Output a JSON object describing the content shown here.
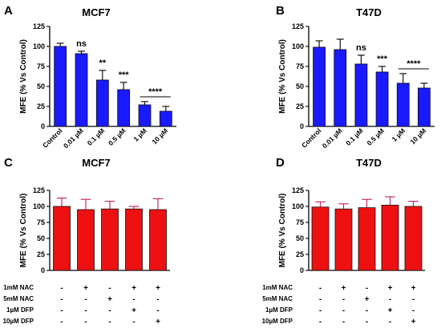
{
  "chart_data": [
    {
      "panel": "A",
      "type": "bar",
      "title": "MCF7",
      "ylabel": "MFE (% Vs Control)",
      "xlabel": "",
      "ylim": [
        0,
        125
      ],
      "yticks": [
        0,
        25,
        50,
        75,
        100,
        125
      ],
      "categories": [
        "Control",
        "0.01 µM",
        "0.1 µM",
        "0.5 µM",
        "1 µM",
        "10 µM"
      ],
      "values": [
        100,
        91,
        58,
        46,
        27,
        19
      ],
      "errors": [
        4,
        3,
        12,
        9,
        4,
        6
      ],
      "significance": [
        "",
        "ns",
        "**",
        "***",
        "****",
        "****"
      ],
      "bar_color": "#1a1aff",
      "grid": false
    },
    {
      "panel": "B",
      "type": "bar",
      "title": "T47D",
      "ylabel": "MFE (% Vs Control)",
      "xlabel": "",
      "ylim": [
        0,
        125
      ],
      "yticks": [
        0,
        25,
        50,
        75,
        100,
        125
      ],
      "categories": [
        "Control",
        "0.01 µM",
        "0.1 µM",
        "0.5 µM",
        "1 µM",
        "10 µM"
      ],
      "values": [
        99,
        96,
        78,
        68,
        54,
        48
      ],
      "errors": [
        8,
        13,
        11,
        7,
        12,
        6
      ],
      "significance": [
        "",
        "",
        "ns",
        "***",
        "****",
        "****"
      ],
      "bar_color": "#1a1aff",
      "grid": false
    },
    {
      "panel": "C",
      "type": "bar",
      "title": "MCF7",
      "ylabel": "MFE (%  Vs Control)",
      "xlabel": "",
      "ylim": [
        0,
        125
      ],
      "yticks": [
        0,
        25,
        50,
        75,
        100,
        125
      ],
      "values": [
        100,
        95,
        96,
        96,
        95
      ],
      "errors": [
        13,
        16,
        12,
        4,
        17
      ],
      "treatment_rows": [
        {
          "label": "1mM NAC",
          "signs": [
            "-",
            "+",
            "-",
            "+",
            "+"
          ]
        },
        {
          "label": "5mM NAC",
          "signs": [
            "-",
            "-",
            "+",
            "-",
            "-"
          ]
        },
        {
          "label": "1µM DFP",
          "signs": [
            "-",
            "-",
            "-",
            "+",
            "-"
          ]
        },
        {
          "label": "10µM DFP",
          "signs": [
            "-",
            "-",
            "-",
            "-",
            "+"
          ]
        }
      ],
      "bar_color": "#ee1111",
      "error_color": "#c2185b",
      "grid": false
    },
    {
      "panel": "D",
      "type": "bar",
      "title": "T47D",
      "ylabel": "MFE (% Vs Control)",
      "xlabel": "",
      "ylim": [
        0,
        125
      ],
      "yticks": [
        0,
        25,
        50,
        75,
        100,
        125
      ],
      "values": [
        99,
        96,
        98,
        102,
        100
      ],
      "errors": [
        8,
        8,
        13,
        13,
        8
      ],
      "treatment_rows": [
        {
          "label": "1mM NAC",
          "signs": [
            "-",
            "+",
            "-",
            "+",
            "+"
          ]
        },
        {
          "label": "5mM NAC",
          "signs": [
            "-",
            "-",
            "+",
            "-",
            "-"
          ]
        },
        {
          "label": "1µM DFP",
          "signs": [
            "-",
            "-",
            "-",
            "+",
            "-"
          ]
        },
        {
          "label": "10µM DFP",
          "signs": [
            "-",
            "-",
            "-",
            "-",
            "+"
          ]
        }
      ],
      "bar_color": "#ee1111",
      "error_color": "#c2185b",
      "grid": false
    }
  ]
}
